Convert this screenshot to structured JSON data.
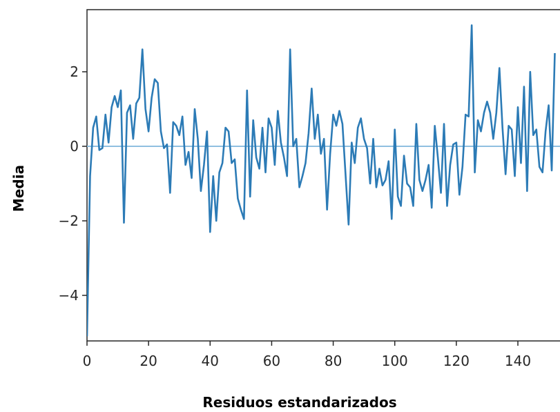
{
  "colors": {
    "series": "#2c7bb6",
    "zero_line": "#8fbfe0",
    "axes": "#262626"
  },
  "chart_data": {
    "type": "line",
    "xlabel": "Residuos estandarizados",
    "ylabel": "Media",
    "xlim": [
      0,
      155
    ],
    "ylim": [
      -5.2,
      3.6
    ],
    "xticks": [
      0,
      20,
      40,
      60,
      80,
      100,
      120,
      140
    ],
    "yticks": [
      -4,
      -2,
      0,
      2
    ],
    "ytick_labels": [
      "−4",
      "−2",
      "0",
      "2"
    ],
    "grid": false,
    "series": [
      {
        "values": [
          -5.1,
          -0.8,
          0.5,
          0.8,
          -0.1,
          -0.05,
          0.85,
          0.1,
          1.05,
          1.35,
          1.05,
          1.5,
          -2.05,
          0.9,
          1.1,
          0.2,
          1.15,
          1.3,
          2.6,
          1.0,
          0.4,
          1.3,
          1.8,
          1.7,
          0.4,
          -0.05,
          0.05,
          -1.25,
          0.65,
          0.55,
          0.3,
          0.8,
          -0.5,
          -0.15,
          -0.85,
          1.0,
          0.2,
          -1.2,
          -0.5,
          0.4,
          -2.3,
          -0.8,
          -2.0,
          -0.7,
          -0.45,
          0.5,
          0.4,
          -0.45,
          -0.35,
          -1.4,
          -1.7,
          -1.95,
          1.5,
          -1.35,
          0.7,
          -0.3,
          -0.6,
          0.5,
          -0.7,
          0.75,
          0.5,
          -0.5,
          0.95,
          0.1,
          -0.3,
          -0.8,
          2.6,
          0.0,
          0.2,
          -1.1,
          -0.8,
          -0.45,
          0.35,
          1.55,
          0.2,
          0.85,
          -0.2,
          0.2,
          -1.7,
          -0.2,
          0.85,
          0.55,
          0.95,
          0.6,
          -0.75,
          -2.1,
          0.1,
          -0.45,
          0.5,
          0.75,
          0.2,
          -0.05,
          -1.0,
          0.2,
          -1.1,
          -0.6,
          -1.05,
          -0.9,
          -0.4,
          -1.95,
          0.45,
          -1.35,
          -1.6,
          -0.25,
          -1.0,
          -1.1,
          -1.6,
          0.6,
          -0.9,
          -1.2,
          -0.9,
          -0.5,
          -1.65,
          0.55,
          -0.3,
          -1.25,
          0.6,
          -1.6,
          -0.5,
          0.05,
          0.1,
          -1.3,
          -0.55,
          0.85,
          0.8,
          3.25,
          -0.7,
          0.7,
          0.4,
          0.9,
          1.2,
          0.9,
          0.2,
          0.9,
          2.1,
          0.5,
          -0.75,
          0.55,
          0.45,
          -0.8,
          1.05,
          -0.45,
          1.6,
          -1.2,
          2.0,
          0.3,
          0.45,
          -0.55,
          -0.7,
          0.4,
          1.1,
          -0.65,
          2.5
        ]
      }
    ]
  }
}
